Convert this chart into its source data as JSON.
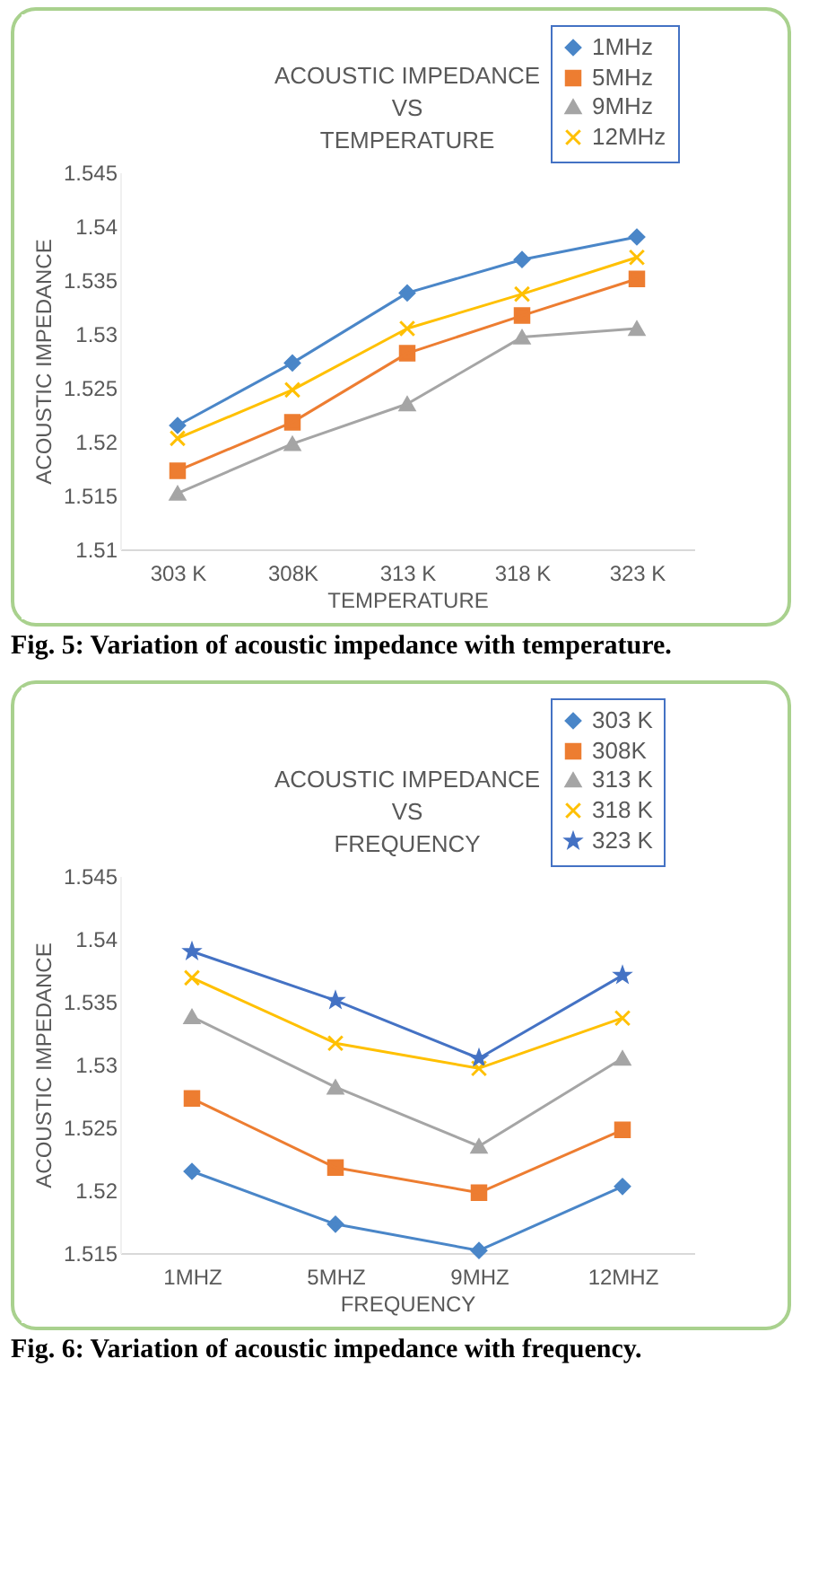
{
  "chart_data": [
    {
      "type": "line",
      "title": "ACOUSTIC IMPEDANCE\nVS\nTEMPERATURE",
      "xlabel": "TEMPERATURE",
      "ylabel": "ACOUSTIC IMPEDANCE",
      "categories": [
        "303 K",
        "308K",
        "313 K",
        "318 K",
        "323 K"
      ],
      "ylim": [
        1.51,
        1.545
      ],
      "yticks": [
        1.51,
        1.515,
        1.52,
        1.525,
        1.53,
        1.535,
        1.54,
        1.545
      ],
      "legend": "top right",
      "line_style": "solid",
      "annotations": [
        "Fig. 5: Variation of acoustic impedance with temperature."
      ],
      "series": [
        {
          "name": "1MHz",
          "color": "#4a86c8",
          "marker": "diamond",
          "values": [
            1.5215,
            1.5273,
            1.5338,
            1.5369,
            1.539
          ]
        },
        {
          "name": "5MHz",
          "color": "#ed7d31",
          "marker": "square",
          "values": [
            1.5173,
            1.5218,
            1.5282,
            1.5317,
            1.5351
          ]
        },
        {
          "name": "9MHz",
          "color": "#a5a5a5",
          "marker": "triangle",
          "values": [
            1.5152,
            1.5198,
            1.5235,
            1.5297,
            1.5305
          ]
        },
        {
          "name": "12MHz",
          "color": "#ffc000",
          "marker": "cross",
          "values": [
            1.5203,
            1.5248,
            1.5305,
            1.5337,
            1.5371
          ]
        }
      ]
    },
    {
      "type": "line",
      "title": "ACOUSTIC IMPEDANCE\nVS\nFREQUENCY",
      "xlabel": "FREQUENCY",
      "ylabel": "ACOUSTIC IMPEDANCE",
      "categories": [
        "1MHZ",
        "5MHZ",
        "9MHZ",
        "12MHZ"
      ],
      "ylim": [
        1.515,
        1.545
      ],
      "yticks": [
        1.515,
        1.52,
        1.525,
        1.53,
        1.535,
        1.54,
        1.545
      ],
      "legend": "top right",
      "line_style": "solid",
      "annotations": [
        "Fig. 6: Variation of acoustic impedance with frequency."
      ],
      "series": [
        {
          "name": "303 K",
          "color": "#4a86c8",
          "marker": "diamond",
          "values": [
            1.5215,
            1.5173,
            1.5152,
            1.5203
          ]
        },
        {
          "name": "308K",
          "color": "#ed7d31",
          "marker": "square",
          "values": [
            1.5273,
            1.5218,
            1.5198,
            1.5248
          ]
        },
        {
          "name": "313 K",
          "color": "#a5a5a5",
          "marker": "triangle",
          "values": [
            1.5338,
            1.5282,
            1.5235,
            1.5305
          ]
        },
        {
          "name": "318 K",
          "color": "#ffc000",
          "marker": "cross",
          "values": [
            1.5369,
            1.5317,
            1.5297,
            1.5337
          ]
        },
        {
          "name": "323 K",
          "color": "#4472c4",
          "marker": "star",
          "values": [
            1.539,
            1.5351,
            1.5305,
            1.5371
          ]
        }
      ]
    }
  ]
}
